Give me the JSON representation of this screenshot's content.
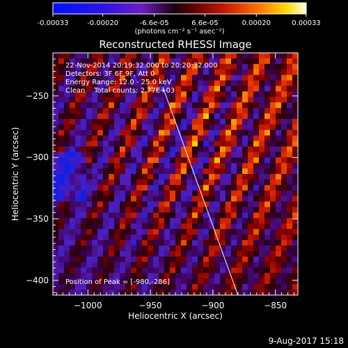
{
  "colorbar": {
    "tick_labels": [
      "-0.00033",
      "-0.00020",
      "-6.6e-05",
      "6.6e-05",
      "0.00020",
      "0.00033"
    ],
    "tick_values": [
      -0.00033,
      -0.0002,
      -6.6e-05,
      6.6e-05,
      0.0002,
      0.00033
    ],
    "range": [
      -0.00033,
      0.00033
    ],
    "units": "(photons cm⁻² s⁻¹ asec⁻²)"
  },
  "chart_data": {
    "type": "heatmap",
    "title": "Reconstructed RHESSI Image",
    "xlabel": "Heliocentric X (arcsec)",
    "ylabel": "Heliocentric Y (arcsec)",
    "xlim": [
      -1028,
      -832
    ],
    "ylim": [
      -412,
      -215
    ],
    "x_ticks": [
      -1000,
      -950,
      -900,
      -850
    ],
    "y_ticks": [
      -400,
      -350,
      -300,
      -250
    ],
    "x_tick_labels": [
      "−1000",
      "−950",
      "−900",
      "−850"
    ],
    "y_tick_labels": [
      "−400",
      "−350",
      "−300",
      "−250"
    ],
    "annotations": [
      "22-Nov-2014 20:19:32.000 to 20:20:32.000",
      "Detectors: 3F 6F 9F, Att 0",
      "Energy Range: 12.0 - 25.0 keV",
      "Clean    Total counts: 2.77E+03"
    ],
    "peak_label": "Position of Peak = [-980,-286]",
    "peak": [
      -980,
      -286
    ],
    "limb_line": [
      [
        -940,
        -243
      ],
      [
        -880,
        -412
      ]
    ]
  },
  "footer": {
    "date": "9-Aug-2017 15:18"
  }
}
